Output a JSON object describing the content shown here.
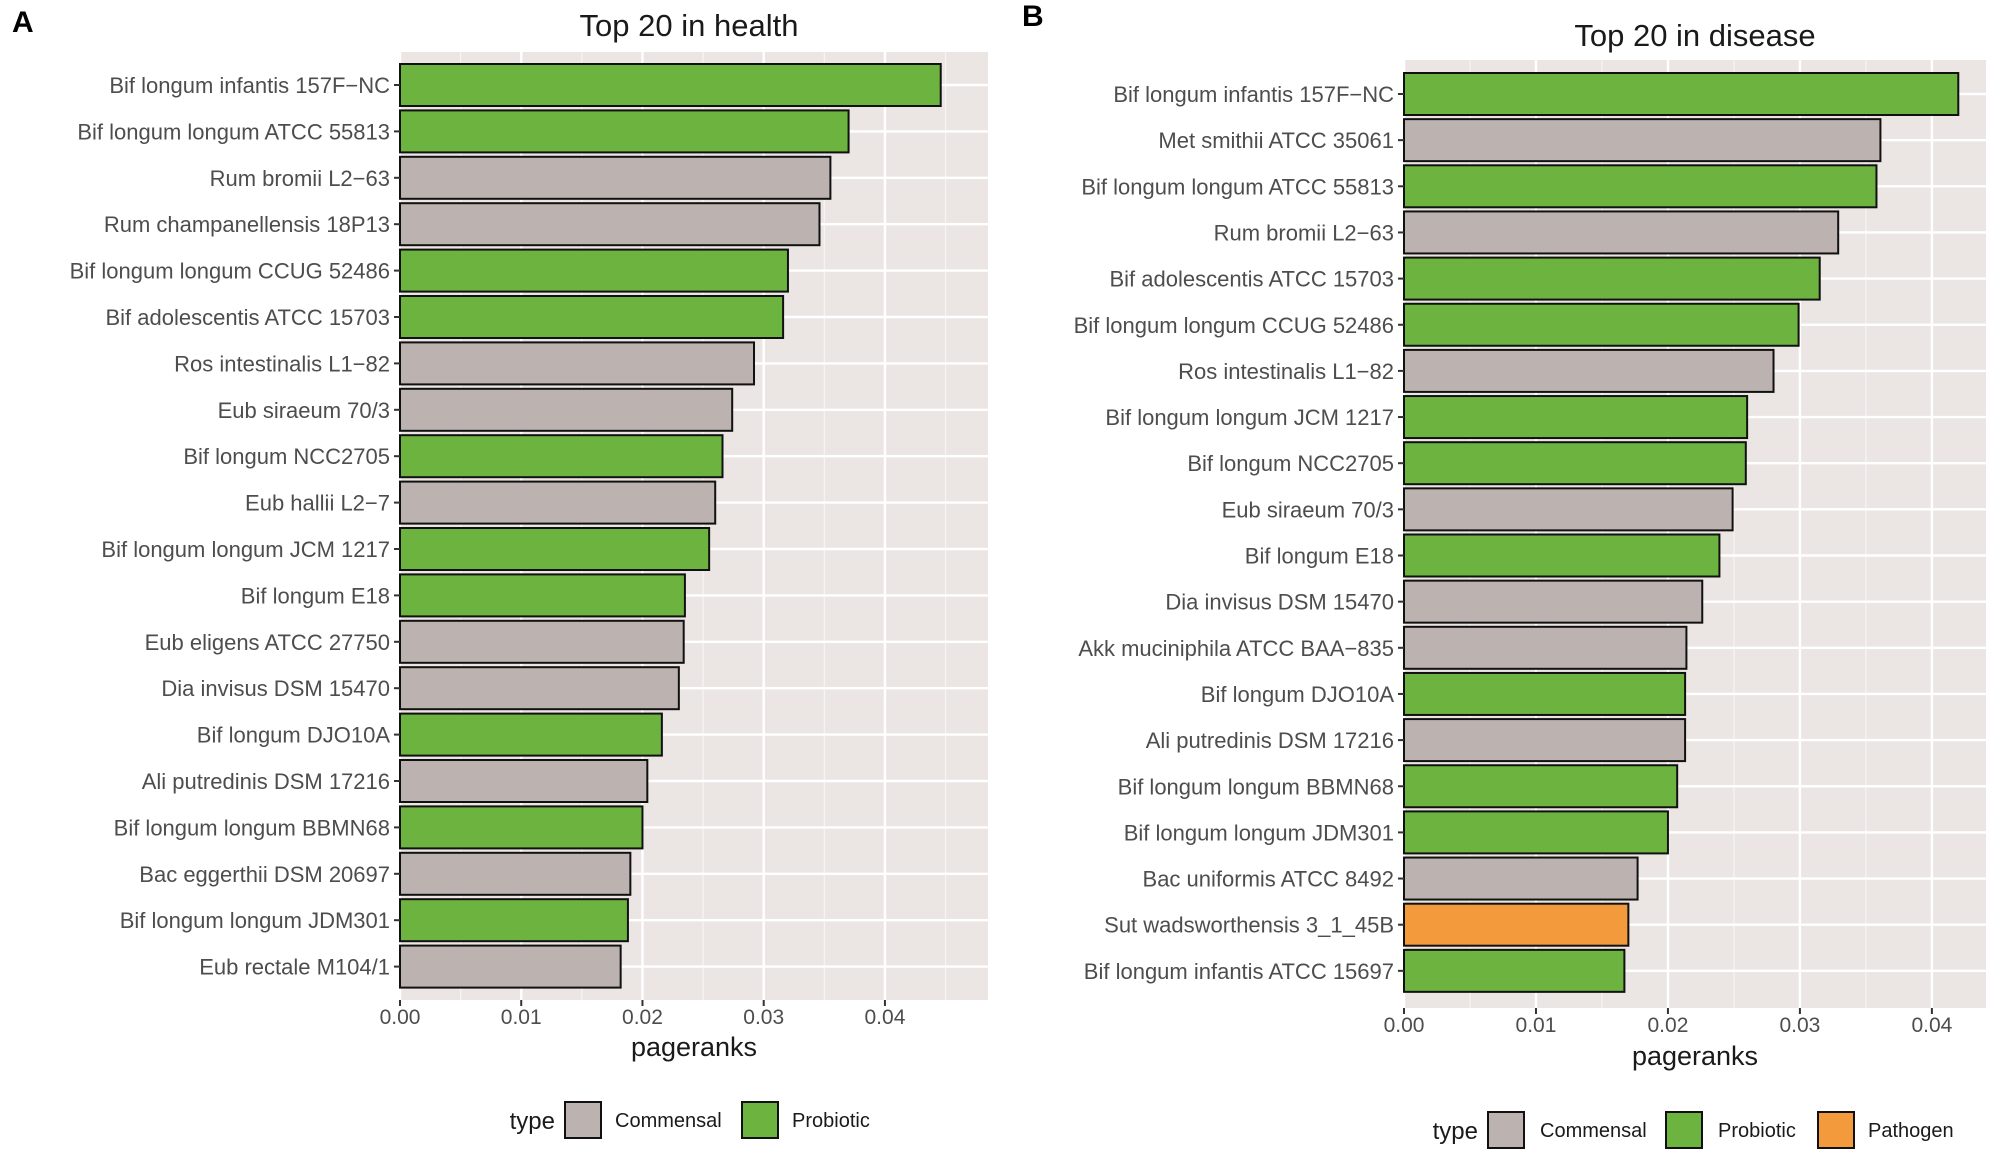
{
  "chart_data": [
    {
      "panel_label": "A",
      "type": "bar",
      "orientation": "horizontal",
      "title": "Top 20 in health",
      "xlabel": "pageranks",
      "ylabel": "",
      "xlim": [
        0,
        0.0485
      ],
      "xticks": [
        0,
        0.01,
        0.02,
        0.03,
        0.04
      ],
      "xtick_labels": [
        "0.00",
        "0.01",
        "0.02",
        "0.03",
        "0.04"
      ],
      "grid": true,
      "legend_position": "bottom",
      "legend_title": "type",
      "legend": [
        {
          "label": "Commensal",
          "color": "#bcb3b1"
        },
        {
          "label": "Probiotic",
          "color": "#6db33f"
        }
      ],
      "categories": [
        "Bif longum infantis 157F−NC",
        "Bif longum longum ATCC 55813",
        "Rum bromii L2−63",
        "Rum champanellensis 18P13",
        "Bif longum longum CCUG 52486",
        "Bif adolescentis ATCC 15703",
        "Ros intestinalis L1−82",
        "Eub siraeum 70/3",
        "Bif longum NCC2705",
        "Eub hallii L2−7",
        "Bif longum longum JCM 1217",
        "Bif longum E18",
        "Eub eligens ATCC 27750",
        "Dia invisus DSM 15470",
        "Bif longum DJO10A",
        "Ali putredinis DSM 17216",
        "Bif longum longum BBMN68",
        "Bac eggerthii DSM 20697",
        "Bif longum longum JDM301",
        "Eub rectale M104/1"
      ],
      "values": [
        0.0446,
        0.037,
        0.0355,
        0.0346,
        0.032,
        0.0316,
        0.0292,
        0.0274,
        0.0266,
        0.026,
        0.0255,
        0.0235,
        0.0234,
        0.023,
        0.0216,
        0.0204,
        0.02,
        0.019,
        0.0188,
        0.0182
      ],
      "types": [
        "Probiotic",
        "Probiotic",
        "Commensal",
        "Commensal",
        "Probiotic",
        "Probiotic",
        "Commensal",
        "Commensal",
        "Probiotic",
        "Commensal",
        "Probiotic",
        "Probiotic",
        "Commensal",
        "Commensal",
        "Probiotic",
        "Commensal",
        "Probiotic",
        "Commensal",
        "Probiotic",
        "Commensal"
      ]
    },
    {
      "panel_label": "B",
      "type": "bar",
      "orientation": "horizontal",
      "title": "Top 20 in disease",
      "xlabel": "pageranks",
      "ylabel": "",
      "xlim": [
        0,
        0.0441
      ],
      "xticks": [
        0,
        0.01,
        0.02,
        0.03,
        0.04
      ],
      "xtick_labels": [
        "0.00",
        "0.01",
        "0.02",
        "0.03",
        "0.04"
      ],
      "grid": true,
      "legend_position": "bottom",
      "legend_title": "type",
      "legend": [
        {
          "label": "Commensal",
          "color": "#bcb3b1"
        },
        {
          "label": "Probiotic",
          "color": "#6db33f"
        },
        {
          "label": "Pathogen",
          "color": "#f39a3c"
        }
      ],
      "categories": [
        "Bif longum infantis 157F−NC",
        "Met smithii ATCC 35061",
        "Bif longum longum ATCC 55813",
        "Rum bromii L2−63",
        "Bif adolescentis ATCC 15703",
        "Bif longum longum CCUG 52486",
        "Ros intestinalis L1−82",
        "Bif longum longum JCM 1217",
        "Bif longum NCC2705",
        "Eub siraeum 70/3",
        "Bif longum E18",
        "Dia invisus DSM 15470",
        "Akk muciniphila ATCC BAA−835",
        "Bif longum DJO10A",
        "Ali putredinis DSM 17216",
        "Bif longum longum BBMN68",
        "Bif longum longum JDM301",
        "Bac uniformis ATCC 8492",
        "Sut wadsworthensis 3_1_45B",
        "Bif longum infantis ATCC 15697"
      ],
      "values": [
        0.042,
        0.0361,
        0.0358,
        0.0329,
        0.0315,
        0.0299,
        0.028,
        0.026,
        0.0259,
        0.0249,
        0.0239,
        0.0226,
        0.0214,
        0.0213,
        0.0213,
        0.0207,
        0.02,
        0.0177,
        0.017,
        0.0167
      ],
      "types": [
        "Probiotic",
        "Commensal",
        "Probiotic",
        "Commensal",
        "Probiotic",
        "Probiotic",
        "Commensal",
        "Probiotic",
        "Probiotic",
        "Commensal",
        "Probiotic",
        "Commensal",
        "Commensal",
        "Probiotic",
        "Commensal",
        "Probiotic",
        "Probiotic",
        "Commensal",
        "Pathogen",
        "Probiotic"
      ]
    }
  ]
}
